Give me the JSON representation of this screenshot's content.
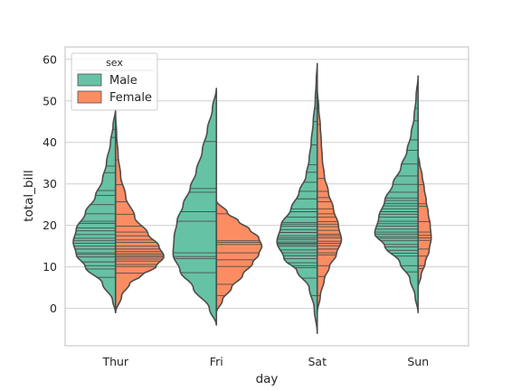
{
  "chart_data": {
    "type": "violin",
    "split": true,
    "inner": "stick",
    "categories": [
      "Thur",
      "Fri",
      "Sat",
      "Sun"
    ],
    "xlabel": "day",
    "ylabel": "total_bill",
    "ylim": [
      -9,
      63
    ],
    "yticks": [
      0,
      10,
      20,
      30,
      40,
      50,
      60
    ],
    "grid": true,
    "legend": {
      "title": "sex",
      "position": "top-left"
    },
    "series": [
      {
        "name": "Male",
        "color": "#66c2a5",
        "violins": [
          {
            "day": "Thur",
            "min": -1,
            "max": 48,
            "mode": 16,
            "mode_width": 0.42,
            "profile": [
              [
                -1,
                0
              ],
              [
                2,
                0.03
              ],
              [
                6,
                0.13
              ],
              [
                10,
                0.3
              ],
              [
                13,
                0.39
              ],
              [
                16,
                0.42
              ],
              [
                19,
                0.39
              ],
              [
                23,
                0.3
              ],
              [
                27,
                0.2
              ],
              [
                31,
                0.13
              ],
              [
                35,
                0.09
              ],
              [
                40,
                0.05
              ],
              [
                44,
                0.025
              ],
              [
                48,
                0
              ]
            ],
            "values": [
              7.5,
              9.5,
              10.3,
              11.2,
              12.4,
              13.0,
              13.4,
              14.3,
              15.0,
              15.7,
              16.3,
              16.9,
              17.8,
              18.7,
              19.4,
              20.5,
              21.0,
              22.8,
              25.0,
              27.2,
              28.4,
              32.7,
              34.3,
              41.2,
              43.1
            ]
          },
          {
            "day": "Fri",
            "min": -4,
            "max": 53,
            "mode": 13,
            "mode_width": 0.43,
            "profile": [
              [
                -4,
                0
              ],
              [
                0,
                0.07
              ],
              [
                5,
                0.23
              ],
              [
                9,
                0.36
              ],
              [
                13,
                0.43
              ],
              [
                17,
                0.42
              ],
              [
                21,
                0.39
              ],
              [
                25,
                0.33
              ],
              [
                29,
                0.26
              ],
              [
                33,
                0.2
              ],
              [
                38,
                0.14
              ],
              [
                43,
                0.09
              ],
              [
                48,
                0.04
              ],
              [
                53,
                0
              ]
            ],
            "values": [
              8.6,
              12.0,
              12.5,
              13.4,
              21.0,
              23.3,
              28.0,
              28.9,
              40.2
            ]
          },
          {
            "day": "Sat",
            "min": -6,
            "max": 59,
            "mode": 16,
            "mode_width": 0.4,
            "profile": [
              [
                -6,
                0
              ],
              [
                0,
                0.03
              ],
              [
                5,
                0.08
              ],
              [
                9,
                0.2
              ],
              [
                12,
                0.33
              ],
              [
                16,
                0.4
              ],
              [
                20,
                0.36
              ],
              [
                24,
                0.26
              ],
              [
                28,
                0.18
              ],
              [
                32,
                0.11
              ],
              [
                36,
                0.08
              ],
              [
                40,
                0.06
              ],
              [
                45,
                0.04
              ],
              [
                50,
                0.02
              ],
              [
                55,
                0.01
              ],
              [
                59,
                0
              ]
            ],
            "values": [
              3.1,
              7.3,
              9.8,
              10.3,
              11.0,
              12.0,
              12.7,
              13.4,
              14.1,
              15.0,
              15.4,
              15.7,
              16.0,
              16.6,
              17.0,
              17.5,
              18.3,
              19.0,
              19.8,
              20.3,
              20.7,
              22.0,
              23.3,
              24.0,
              26.4,
              28.2,
              30.4,
              32.8,
              34.6,
              39.4,
              45.0,
              48.2,
              50.8
            ]
          },
          {
            "day": "Sun",
            "min": -1,
            "max": 56,
            "mode": 18,
            "mode_width": 0.43,
            "profile": [
              [
                -1,
                0
              ],
              [
                3,
                0.03
              ],
              [
                7,
                0.08
              ],
              [
                11,
                0.18
              ],
              [
                15,
                0.33
              ],
              [
                18,
                0.43
              ],
              [
                22,
                0.39
              ],
              [
                26,
                0.33
              ],
              [
                30,
                0.25
              ],
              [
                34,
                0.17
              ],
              [
                38,
                0.11
              ],
              [
                42,
                0.07
              ],
              [
                46,
                0.04
              ],
              [
                51,
                0.02
              ],
              [
                56,
                0
              ]
            ],
            "values": [
              8.8,
              10.3,
              12.6,
              13.3,
              14.0,
              14.8,
              15.4,
              16.3,
              16.9,
              17.3,
              17.9,
              18.4,
              19.1,
              19.8,
              20.4,
              21.0,
              22.0,
              22.7,
              23.3,
              24.0,
              24.7,
              25.3,
              26.0,
              26.6,
              28.0,
              29.9,
              31.9,
              34.8,
              38.1,
              40.6,
              45.2,
              48.2
            ]
          }
        ]
      },
      {
        "name": "Female",
        "color": "#fc8d62",
        "violins": [
          {
            "day": "Thur",
            "min": -1,
            "max": 47,
            "mode": 12.5,
            "mode_width": 0.48,
            "profile": [
              [
                -1,
                0
              ],
              [
                3,
                0.06
              ],
              [
                6,
                0.14
              ],
              [
                8,
                0.26
              ],
              [
                10,
                0.4
              ],
              [
                12.5,
                0.48
              ],
              [
                15,
                0.43
              ],
              [
                18,
                0.32
              ],
              [
                22,
                0.19
              ],
              [
                27,
                0.1
              ],
              [
                32,
                0.05
              ],
              [
                37,
                0.025
              ],
              [
                42,
                0.01
              ],
              [
                47,
                0
              ]
            ],
            "values": [
              8.5,
              10.1,
              10.6,
              11.4,
              11.9,
              12.4,
              12.8,
              13.2,
              13.7,
              14.3,
              15.0,
              15.9,
              16.5,
              17.5,
              18.4,
              19.8,
              22.7,
              25.7,
              29.8,
              35.8,
              43.1
            ]
          },
          {
            "day": "Fri",
            "min": -1,
            "max": 26,
            "mode": 15,
            "mode_width": 0.45,
            "profile": [
              [
                -1,
                0
              ],
              [
                2,
                0.06
              ],
              [
                5,
                0.15
              ],
              [
                8,
                0.26
              ],
              [
                11,
                0.36
              ],
              [
                13,
                0.42
              ],
              [
                15,
                0.45
              ],
              [
                17,
                0.42
              ],
              [
                19,
                0.33
              ],
              [
                21,
                0.22
              ],
              [
                23,
                0.11
              ],
              [
                26,
                0
              ]
            ],
            "values": [
              3.1,
              5.8,
              10.1,
              11.7,
              13.4,
              15.4,
              15.9,
              16.3,
              22.8
            ]
          },
          {
            "day": "Sat",
            "min": -1,
            "max": 53,
            "mode": 16.5,
            "mode_width": 0.24,
            "profile": [
              [
                -1,
                0
              ],
              [
                3,
                0.03
              ],
              [
                7,
                0.07
              ],
              [
                10,
                0.12
              ],
              [
                13,
                0.19
              ],
              [
                16.5,
                0.24
              ],
              [
                20,
                0.21
              ],
              [
                24,
                0.16
              ],
              [
                28,
                0.11
              ],
              [
                32,
                0.07
              ],
              [
                36,
                0.05
              ],
              [
                40,
                0.04
              ],
              [
                44,
                0.03
              ],
              [
                48,
                0.015
              ],
              [
                53,
                0
              ]
            ],
            "values": [
              3.1,
              7.7,
              10.3,
              12.9,
              13.4,
              14.3,
              15.1,
              15.7,
              16.2,
              17.0,
              17.5,
              17.9,
              18.8,
              19.7,
              20.3,
              20.9,
              22.0,
              22.8,
              24.0,
              25.7,
              26.7,
              28.2,
              31.3,
              44.3,
              48.3
            ]
          },
          {
            "day": "Sun",
            "min": 5,
            "max": 37,
            "mode": 17,
            "mode_width": 0.13,
            "profile": [
              [
                5,
                0
              ],
              [
                8,
                0.03
              ],
              [
                11,
                0.07
              ],
              [
                14,
                0.11
              ],
              [
                17,
                0.13
              ],
              [
                20,
                0.12
              ],
              [
                23,
                0.1
              ],
              [
                26,
                0.08
              ],
              [
                29,
                0.06
              ],
              [
                32,
                0.04
              ],
              [
                35,
                0.015
              ],
              [
                37,
                0
              ]
            ],
            "values": [
              9.6,
              10.3,
              12.6,
              14.3,
              16.4,
              17.0,
              17.6,
              18.4,
              20.9,
              24.6,
              25.2,
              29.8,
              35.3
            ]
          }
        ]
      }
    ]
  }
}
